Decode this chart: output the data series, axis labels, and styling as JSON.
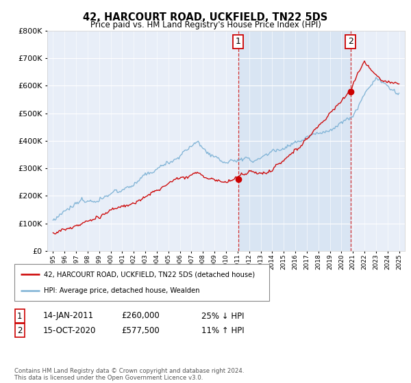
{
  "title": "42, HARCOURT ROAD, UCKFIELD, TN22 5DS",
  "subtitle": "Price paid vs. HM Land Registry's House Price Index (HPI)",
  "legend_line1": "42, HARCOURT ROAD, UCKFIELD, TN22 5DS (detached house)",
  "legend_line2": "HPI: Average price, detached house, Wealden",
  "footnote": "Contains HM Land Registry data © Crown copyright and database right 2024.\nThis data is licensed under the Open Government Licence v3.0.",
  "table": [
    {
      "num": "1",
      "date": "14-JAN-2011",
      "price": "£260,000",
      "hpi": "25% ↓ HPI"
    },
    {
      "num": "2",
      "date": "15-OCT-2020",
      "price": "£577,500",
      "hpi": "11% ↑ HPI"
    }
  ],
  "vline_years": [
    2011.04,
    2020.79
  ],
  "sale_points": [
    {
      "year": 2011.04,
      "price": 260000
    },
    {
      "year": 2020.79,
      "price": 577500
    }
  ],
  "plot_bg": "#e8eef8",
  "red_color": "#cc0000",
  "blue_color": "#7ab0d4",
  "shade_color": "#d0dff0",
  "ylim": [
    0,
    800000
  ],
  "xlim_start": 1994.5,
  "xlim_end": 2025.5
}
